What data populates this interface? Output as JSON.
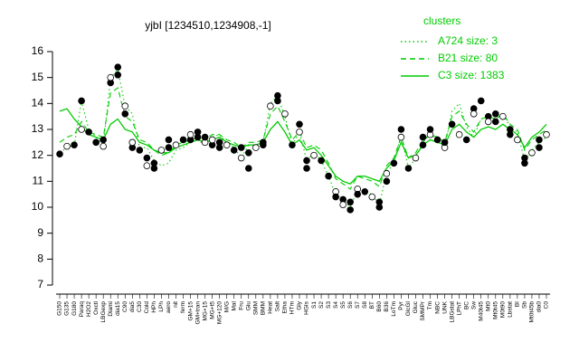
{
  "chart_data": {
    "type": "line",
    "title": "yjbI [1234510,1234908,-1]",
    "xlabel": "",
    "ylabel": "",
    "ylim": [
      7,
      16
    ],
    "yticks": [
      7,
      8,
      9,
      10,
      11,
      12,
      13,
      14,
      15,
      16
    ],
    "xtick_labels": [
      "G150",
      "G135",
      "G180",
      "Paraq",
      "H2O2",
      "Oxctl",
      "LBGexp",
      "Diami",
      "dia15",
      "C90",
      "dia5",
      "C30",
      "Cold",
      "HPh",
      "LPh",
      "aero",
      "nit",
      "ferm",
      "GM+15",
      "GM+tran",
      "MG+15",
      "MG+t5",
      "MG+120",
      "M/G",
      "Mal",
      "Fru",
      "Glu",
      "SMM",
      "BMM",
      "Heat",
      "Salt",
      "Etha",
      "HTm",
      "Gly",
      "HGIs",
      "S1",
      "S2",
      "S3",
      "S4",
      "S5",
      "S6",
      "S7",
      "S8",
      "BT",
      "B60",
      "B36",
      "LoTm",
      "Pyr",
      "GlcGl",
      "Gluc",
      "SMMPr",
      "Tm",
      "NBC",
      "UNK",
      "LBGstat",
      "LPhT",
      "BC",
      "Sw",
      "M40t45",
      "Mt0",
      "Mt0t45",
      "M0t90",
      "Lbstat",
      "BI",
      "Sb",
      "Mt0t45b",
      "dia0",
      "C0"
    ],
    "legend": {
      "title": "clusters",
      "placement": "top-right",
      "entries": [
        {
          "label": "A724 size: 3",
          "style": "dotted"
        },
        {
          "label": "B21 size: 80",
          "style": "dashed"
        },
        {
          "label": "C3 size: 1383",
          "style": "solid"
        }
      ]
    },
    "colors": {
      "series": "#00cc00",
      "points": "#000000",
      "background": "#ffffff"
    },
    "series": [
      {
        "name": "A724 size: 3",
        "style": "dotted",
        "values": [
          12.1,
          12.3,
          12.4,
          14.1,
          13.0,
          12.7,
          12.4,
          15.0,
          15.3,
          13.9,
          13.6,
          12.3,
          12.3,
          11.8,
          11.6,
          11.7,
          12.2,
          12.3,
          12.5,
          12.6,
          12.4,
          12.7,
          12.8,
          12.5,
          12.3,
          11.9,
          12.4,
          12.4,
          12.5,
          14.0,
          14.3,
          13.5,
          12.4,
          12.9,
          11.8,
          12.1,
          11.8,
          11.2,
          10.5,
          10.3,
          10.0,
          10.7,
          10.6,
          10.5,
          10.1,
          11.3,
          11.7,
          12.8,
          11.5,
          11.9,
          12.5,
          12.8,
          12.6,
          12.3,
          13.7,
          14.0,
          13.1,
          12.7,
          13.4,
          13.5,
          13.4,
          13.6,
          13.1,
          12.9,
          11.8,
          12.2,
          12.5,
          12.7
        ]
      },
      {
        "name": "B21 size: 80",
        "style": "dashed",
        "values": [
          12.5,
          12.7,
          12.8,
          13.3,
          12.9,
          12.8,
          12.7,
          14.4,
          14.6,
          13.5,
          13.3,
          12.6,
          12.5,
          12.2,
          12.0,
          12.1,
          12.4,
          12.5,
          12.6,
          12.7,
          12.6,
          12.8,
          12.8,
          12.6,
          12.5,
          12.3,
          12.5,
          12.5,
          12.6,
          13.6,
          13.9,
          13.3,
          12.6,
          12.9,
          12.3,
          12.4,
          12.2,
          11.7,
          11.1,
          10.9,
          10.7,
          11.2,
          11.1,
          11.0,
          10.8,
          11.6,
          11.9,
          12.7,
          11.9,
          12.1,
          12.6,
          12.8,
          12.7,
          12.5,
          13.5,
          13.7,
          13.2,
          12.9,
          13.4,
          13.5,
          13.4,
          13.6,
          13.2,
          13.0,
          12.2,
          12.6,
          12.8,
          13.0
        ]
      },
      {
        "name": "C3 size: 1383",
        "style": "solid",
        "values": [
          13.7,
          13.8,
          13.4,
          13.1,
          12.8,
          12.7,
          12.6,
          13.2,
          13.4,
          13.0,
          12.9,
          12.5,
          12.4,
          12.2,
          12.1,
          12.1,
          12.3,
          12.4,
          12.5,
          12.6,
          12.5,
          12.6,
          12.7,
          12.5,
          12.4,
          12.3,
          12.4,
          12.4,
          12.5,
          13.0,
          13.3,
          12.9,
          12.4,
          12.6,
          12.2,
          12.3,
          12.0,
          11.6,
          11.2,
          11.0,
          10.9,
          11.2,
          11.2,
          11.1,
          11.0,
          11.5,
          11.8,
          12.5,
          11.9,
          12.0,
          12.4,
          12.6,
          12.5,
          12.4,
          13.0,
          13.2,
          12.9,
          12.7,
          13.0,
          13.1,
          13.0,
          13.2,
          13.0,
          12.8,
          12.3,
          12.7,
          12.9,
          13.2
        ]
      }
    ],
    "points": [
      [
        0,
        12.05
      ],
      [
        1,
        12.35
      ],
      [
        2,
        12.4
      ],
      [
        3,
        14.1
      ],
      [
        3,
        13.0
      ],
      [
        4,
        12.9
      ],
      [
        5,
        12.5
      ],
      [
        6,
        12.35
      ],
      [
        6,
        12.6
      ],
      [
        7,
        14.8
      ],
      [
        7,
        15.0
      ],
      [
        8,
        15.4
      ],
      [
        8,
        15.1
      ],
      [
        9,
        13.9
      ],
      [
        9,
        13.6
      ],
      [
        10,
        12.3
      ],
      [
        10,
        12.5
      ],
      [
        11,
        12.2
      ],
      [
        12,
        11.9
      ],
      [
        12,
        11.6
      ],
      [
        13,
        11.5
      ],
      [
        13,
        11.7
      ],
      [
        14,
        12.2
      ],
      [
        15,
        12.3
      ],
      [
        15,
        12.6
      ],
      [
        16,
        12.4
      ],
      [
        17,
        12.6
      ],
      [
        18,
        12.6
      ],
      [
        18,
        12.8
      ],
      [
        19,
        12.9
      ],
      [
        19,
        12.7
      ],
      [
        20,
        12.5
      ],
      [
        20,
        12.7
      ],
      [
        21,
        12.4
      ],
      [
        21,
        12.6
      ],
      [
        22,
        12.5
      ],
      [
        22,
        12.3
      ],
      [
        23,
        12.4
      ],
      [
        24,
        12.2
      ],
      [
        25,
        12.3
      ],
      [
        25,
        11.9
      ],
      [
        26,
        11.5
      ],
      [
        26,
        12.1
      ],
      [
        27,
        12.3
      ],
      [
        28,
        12.4
      ],
      [
        28,
        12.5
      ],
      [
        29,
        13.9
      ],
      [
        30,
        14.3
      ],
      [
        30,
        14.1
      ],
      [
        31,
        13.6
      ],
      [
        32,
        12.4
      ],
      [
        33,
        13.2
      ],
      [
        33,
        12.9
      ],
      [
        34,
        11.8
      ],
      [
        34,
        11.5
      ],
      [
        35,
        12.0
      ],
      [
        36,
        11.8
      ],
      [
        37,
        11.2
      ],
      [
        38,
        10.6
      ],
      [
        38,
        10.4
      ],
      [
        39,
        10.3
      ],
      [
        39,
        10.1
      ],
      [
        40,
        9.9
      ],
      [
        40,
        10.2
      ],
      [
        41,
        10.7
      ],
      [
        41,
        10.5
      ],
      [
        42,
        10.6
      ],
      [
        43,
        10.4
      ],
      [
        44,
        10.0
      ],
      [
        44,
        10.2
      ],
      [
        45,
        11.3
      ],
      [
        45,
        11.0
      ],
      [
        46,
        11.7
      ],
      [
        47,
        12.7
      ],
      [
        47,
        13.0
      ],
      [
        48,
        11.5
      ],
      [
        49,
        11.9
      ],
      [
        50,
        12.4
      ],
      [
        50,
        12.7
      ],
      [
        51,
        12.8
      ],
      [
        51,
        13.0
      ],
      [
        52,
        12.6
      ],
      [
        53,
        12.3
      ],
      [
        53,
        12.5
      ],
      [
        54,
        13.2
      ],
      [
        55,
        12.8
      ],
      [
        56,
        12.6
      ],
      [
        57,
        13.8
      ],
      [
        57,
        13.6
      ],
      [
        58,
        14.1
      ],
      [
        59,
        13.5
      ],
      [
        59,
        13.3
      ],
      [
        60,
        13.6
      ],
      [
        60,
        13.3
      ],
      [
        61,
        13.5
      ],
      [
        62,
        13.0
      ],
      [
        62,
        12.8
      ],
      [
        63,
        12.6
      ],
      [
        64,
        11.7
      ],
      [
        64,
        11.9
      ],
      [
        65,
        12.1
      ],
      [
        66,
        12.3
      ],
      [
        66,
        12.6
      ],
      [
        67,
        12.8
      ]
    ]
  }
}
